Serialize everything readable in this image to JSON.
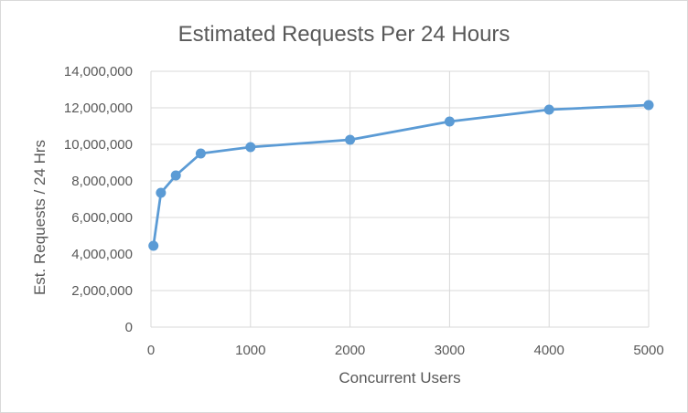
{
  "chart_data": {
    "type": "scatter",
    "title": "Estimated Requests Per 24 Hours",
    "xlabel": "Concurrent Users",
    "ylabel": "Est. Requests / 24 Hrs",
    "x": [
      25,
      100,
      250,
      500,
      1000,
      2000,
      3000,
      4000,
      5000
    ],
    "series": [
      {
        "values": [
          4450000,
          7350000,
          8300000,
          9500000,
          9850000,
          10250000,
          11250000,
          11900000,
          12150000
        ]
      }
    ],
    "xlim": [
      0,
      5000
    ],
    "ylim": [
      0,
      14000000
    ],
    "x_ticks": [
      0,
      1000,
      2000,
      3000,
      4000,
      5000
    ],
    "x_tick_labels": [
      "0",
      "1000",
      "2000",
      "3000",
      "4000",
      "5000"
    ],
    "y_ticks": [
      0,
      2000000,
      4000000,
      6000000,
      8000000,
      10000000,
      12000000,
      14000000
    ],
    "y_tick_labels": [
      "0",
      "2,000,000",
      "4,000,000",
      "6,000,000",
      "8,000,000",
      "10,000,000",
      "12,000,000",
      "14,000,000"
    ],
    "grid": true,
    "legend": "none",
    "color": "#5b9bd5",
    "grid_color": "#d9d9d9"
  }
}
